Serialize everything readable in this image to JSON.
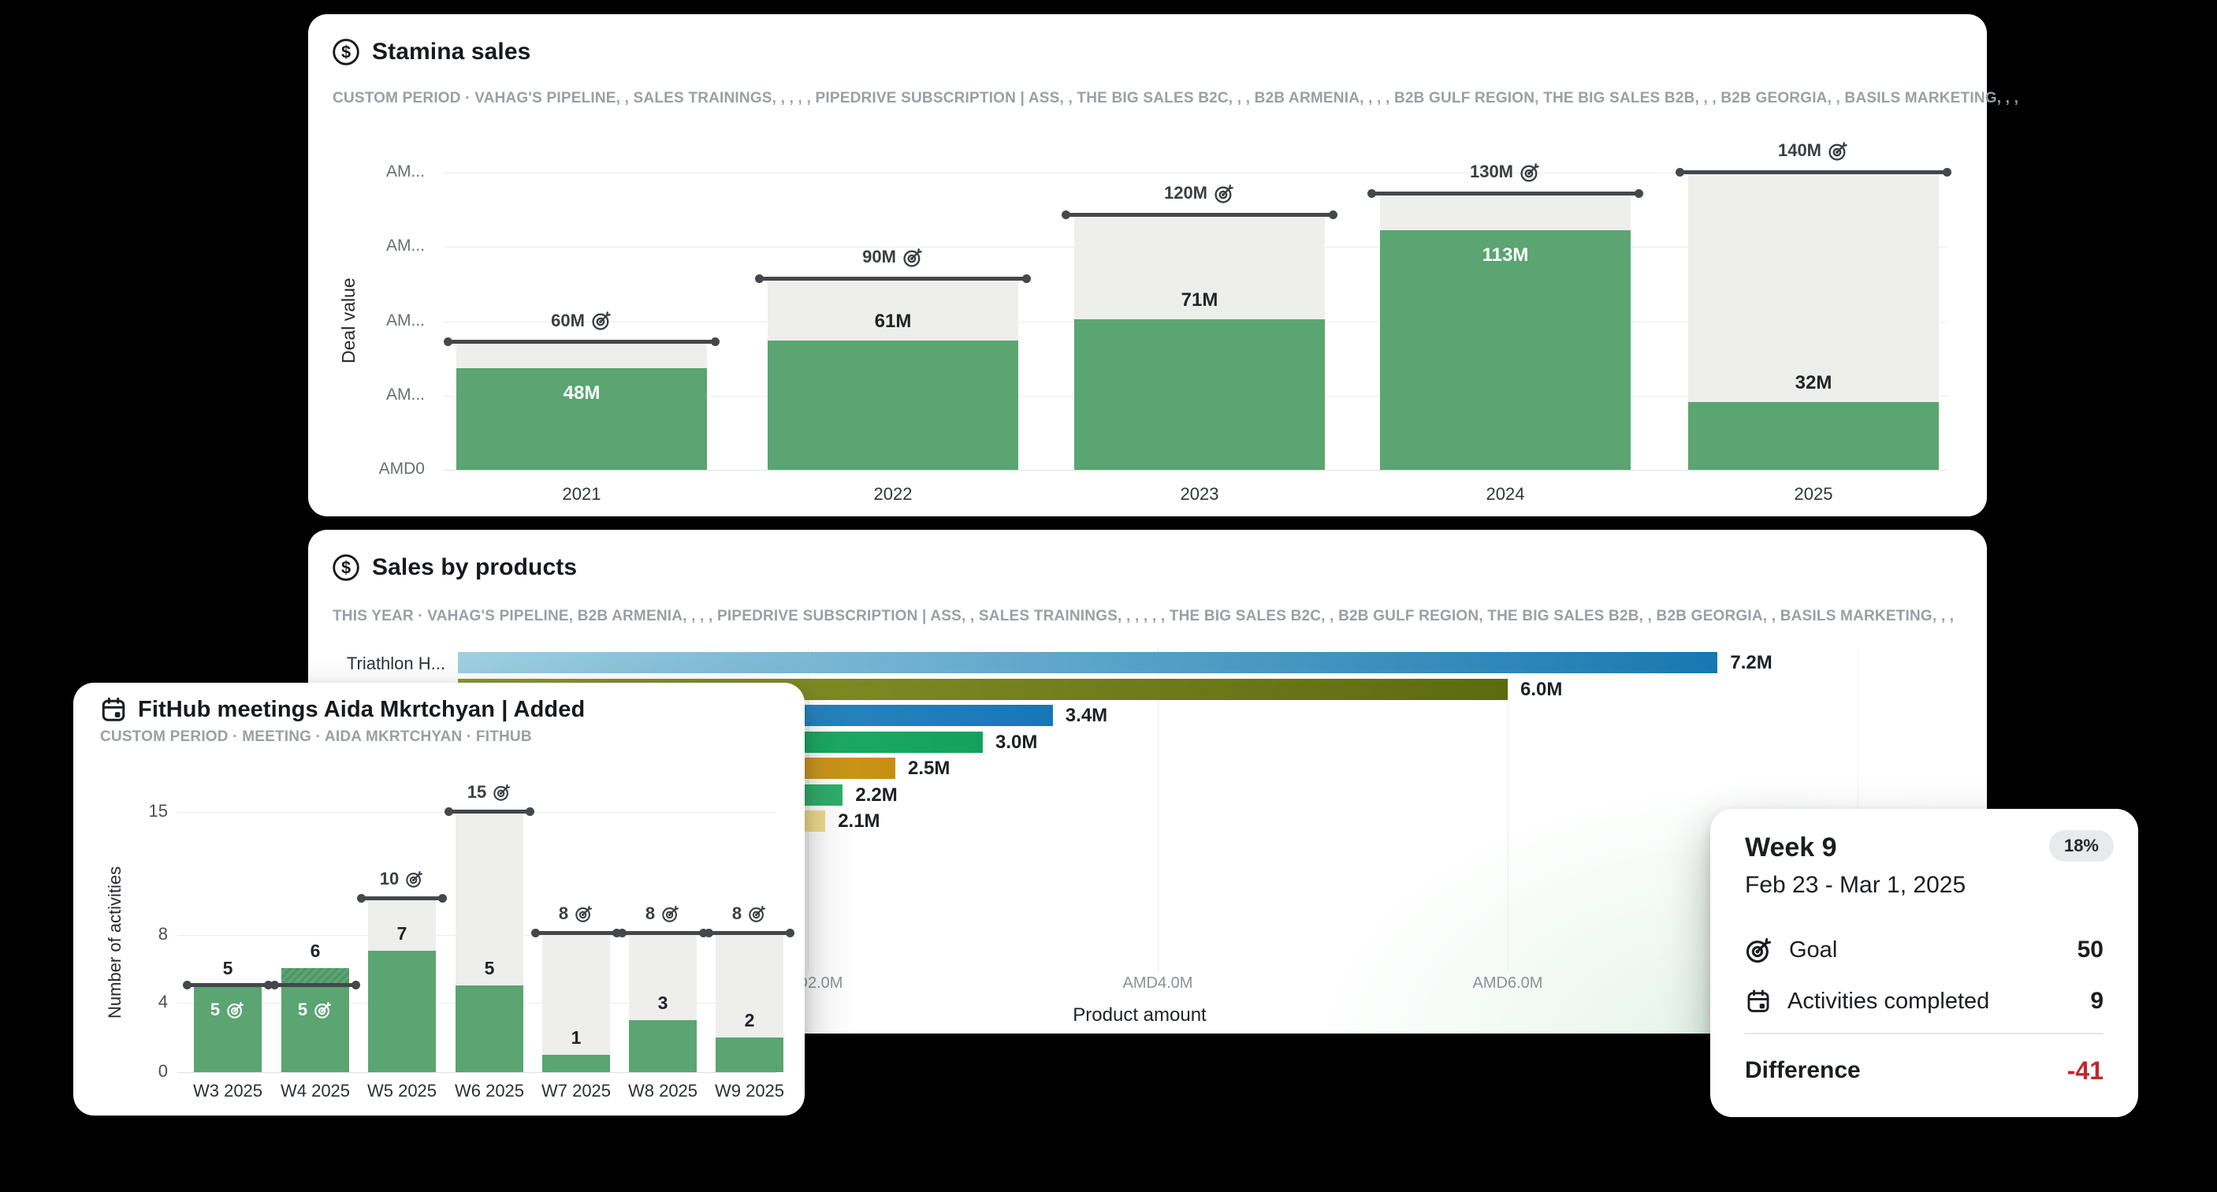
{
  "page": {
    "background": "#000000"
  },
  "stamina_card": {
    "icon": "dollar-circle-icon",
    "title": "Stamina sales",
    "subtitle": "CUSTOM PERIOD  ·  VAHAG'S PIPELINE, , SALES TRAININGS, , , , , PIPEDRIVE SUBSCRIPTION | ASS, , THE BIG SALES B2C, , , B2B ARMENIA, , , , B2B GULF REGION, THE BIG SALES B2B, , , B2B GEORGIA, , BASILS MARKETING, , ,"
  },
  "products_card": {
    "icon": "dollar-circle-icon",
    "title": "Sales by products",
    "subtitle": "THIS YEAR  ·  VAHAG'S PIPELINE, B2B ARMENIA, , , , PIPEDRIVE SUBSCRIPTION | ASS, , SALES TRAININGS, , , , , , THE BIG SALES B2C, , B2B GULF REGION, THE BIG SALES B2B, , B2B GEORGIA, , BASILS MARKETING, , ,"
  },
  "fithub_card": {
    "icon": "calendar-icon",
    "title": "FitHub meetings Aida Mkrtchyan | Added",
    "subtitle": "CUSTOM PERIOD  ·  MEETING  ·  AIDA MKRTCHYAN  ·  FITHUB"
  },
  "week_card": {
    "title": "Week 9",
    "badge": "18%",
    "date_range": "Feb 23 - Mar 1, 2025",
    "goal_icon": "target-icon",
    "goal_label": "Goal",
    "goal_value": "50",
    "activities_icon": "calendar-icon",
    "activities_label": "Activities completed",
    "activities_value": "9",
    "difference_label": "Difference",
    "difference_value": "-41"
  },
  "chart_data": [
    {
      "id": "stamina-sales",
      "type": "bar",
      "title": "Stamina sales",
      "ylabel": "Deal value",
      "currency": "AMD",
      "ylim": [
        0,
        140000000
      ],
      "y_tick_labels": [
        "AM...",
        "AM...",
        "AM...",
        "AM...",
        "AMD0"
      ],
      "grid": true,
      "categories": [
        "2021",
        "2022",
        "2023",
        "2024",
        "2025"
      ],
      "series": [
        {
          "name": "deal_value",
          "values": [
            48000000,
            61000000,
            71000000,
            113000000,
            32000000
          ]
        },
        {
          "name": "goal",
          "values": [
            60000000,
            90000000,
            120000000,
            130000000,
            140000000
          ]
        }
      ],
      "value_labels": [
        "48M",
        "61M",
        "71M",
        "113M",
        "32M"
      ],
      "goal_labels": [
        "60M",
        "90M",
        "120M",
        "130M",
        "140M"
      ]
    },
    {
      "id": "sales-by-products",
      "type": "bar-horizontal",
      "title": "Sales by products",
      "xlabel": "Product amount",
      "x_tick_labels": [
        "AMD2.0M",
        "AMD4.0M",
        "AMD6.0M"
      ],
      "xlim": [
        0,
        8600000
      ],
      "grid": true,
      "rows": [
        {
          "label": "Triathlon H...",
          "value": 7200000,
          "value_label": "7.2M",
          "color_from": "#9fd0e2",
          "color_to": "#1878b1"
        },
        {
          "label": "",
          "value": 6000000,
          "value_label": "6.0M",
          "color_from": "#8e9a2e",
          "color_to": "#5d6b10"
        },
        {
          "label": "",
          "value": 3400000,
          "value_label": "3.4M",
          "color_from": "#3f97c6",
          "color_to": "#1777b6"
        },
        {
          "label": "",
          "value": 3000000,
          "value_label": "3.0M",
          "color_from": "#35bb74",
          "color_to": "#12a25c"
        },
        {
          "label": "",
          "value": 2500000,
          "value_label": "2.5M",
          "color_from": "#e5c366",
          "color_to": "#c78e10"
        },
        {
          "label": "",
          "value": 2200000,
          "value_label": "2.2M",
          "color_from": "#4dbb7e",
          "color_to": "#2fae6b"
        },
        {
          "label": "",
          "value": 2100000,
          "value_label": "2.1M",
          "color_from": "#f6ecba",
          "color_to": "#f0dc8c"
        }
      ]
    },
    {
      "id": "fithub-meetings",
      "type": "bar",
      "title": "FitHub meetings Aida Mkrtchyan | Added",
      "ylabel": "Number of activities",
      "ylim": [
        0,
        15
      ],
      "y_tick_labels": [
        "15",
        "8",
        "4",
        "0"
      ],
      "y_ticks": [
        15,
        8,
        4,
        0
      ],
      "grid": true,
      "categories": [
        "W3 2025",
        "W4 2025",
        "W5 2025",
        "W6 2025",
        "W7 2025",
        "W8 2025",
        "W9 2025"
      ],
      "series": [
        {
          "name": "activities",
          "values": [
            5,
            6,
            7,
            5,
            1,
            3,
            2
          ]
        },
        {
          "name": "goal",
          "values": [
            5,
            5,
            10,
            15,
            8,
            8,
            8
          ]
        }
      ]
    }
  ],
  "colors": {
    "bar_green": "#5aa571",
    "goal_area_grey": "#eeeeec",
    "goal_line": "#44474b",
    "badge_bg": "#e9eaec",
    "difference_red": "#c5262c",
    "card_bg": "#ffffff",
    "page_bg": "#000000"
  }
}
